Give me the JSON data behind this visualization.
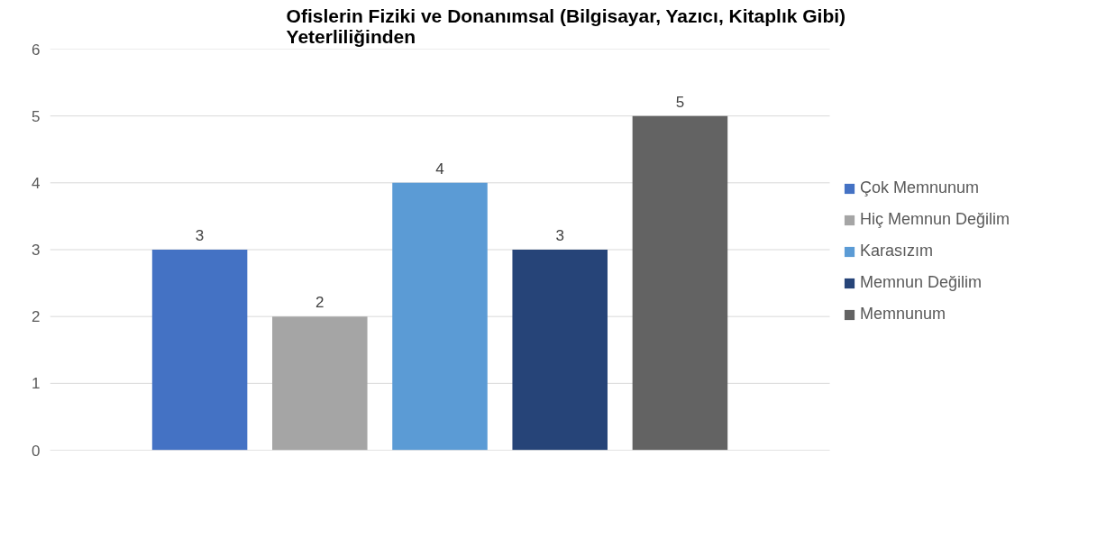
{
  "chart_data": {
    "type": "bar",
    "title": "Ofislerin Fiziki ve Donanımsal (Bilgisayar, Yazıcı, Kitaplık Gibi) Yeterliliğinden",
    "categories": [
      null
    ],
    "series": [
      {
        "name": "Çok Memnunum",
        "color": "#4472c4",
        "values": [
          3
        ]
      },
      {
        "name": "Hiç Memnun Değilim",
        "color": "#a5a5a5",
        "values": [
          2
        ]
      },
      {
        "name": "Karasızım",
        "color": "#5b9bd5",
        "values": [
          4
        ]
      },
      {
        "name": "Memnun Değilim",
        "color": "#264478",
        "values": [
          3
        ]
      },
      {
        "name": "Memnunum",
        "color": "#636363",
        "values": [
          5
        ]
      }
    ],
    "ylim": [
      0,
      6
    ],
    "yticks": [
      0,
      1,
      2,
      3,
      4,
      5,
      6
    ],
    "grid": "y",
    "legend": "right",
    "data_labels": true,
    "tick_labels": "y"
  }
}
